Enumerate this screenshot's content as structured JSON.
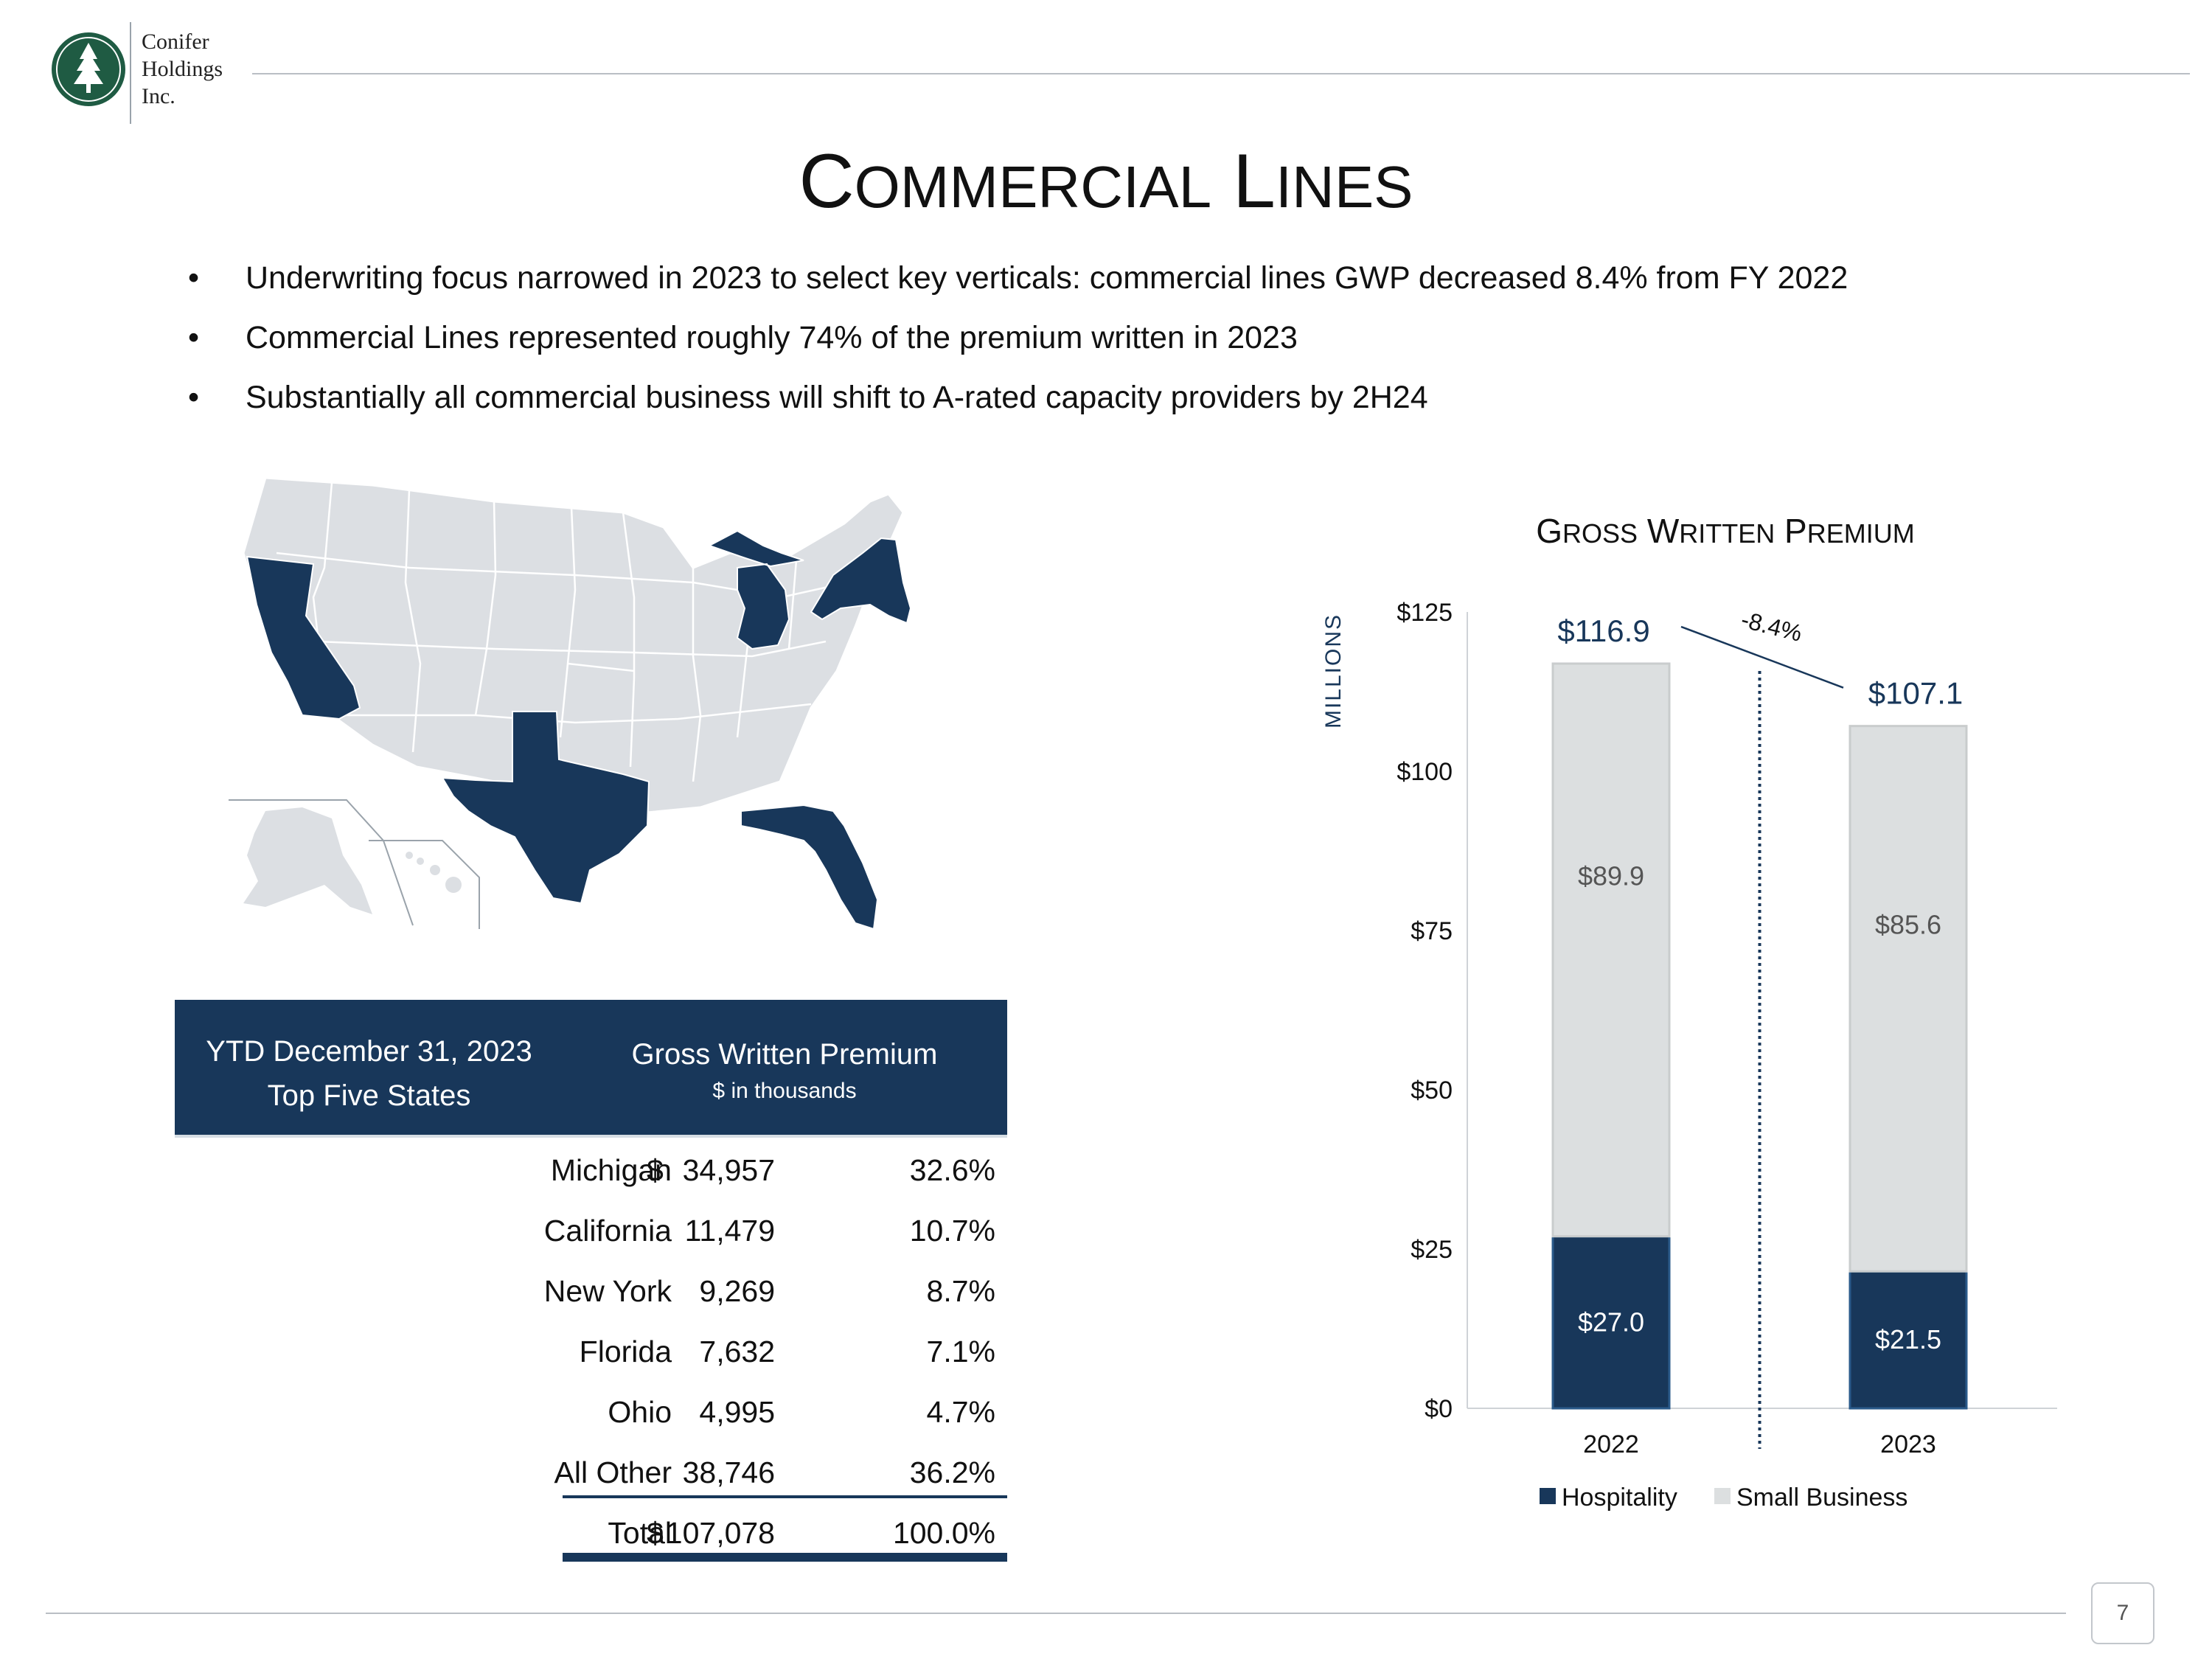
{
  "logo": {
    "line1": "Conifer",
    "line2": "Holdings",
    "line3": "Inc.",
    "seal_color": "#1f5b43"
  },
  "title": {
    "first1": "C",
    "rest1": "ommercial",
    "first2": "L",
    "rest2": "ines"
  },
  "bullets": [
    "Underwriting focus narrowed in 2023 to select key verticals: commercial lines GWP decreased 8.4% from FY 2022",
    "Commercial Lines represented roughly 74% of the premium written in 2023",
    "Substantially all commercial business will shift to A-rated capacity providers by 2H24"
  ],
  "bullet_glyph": "•",
  "map": {
    "highlighted_states": [
      "California",
      "Texas",
      "Michigan",
      "New York",
      "Florida"
    ],
    "highlight_color": "#18375a",
    "base_color": "#dcdfe3"
  },
  "table": {
    "header_left_line1": "YTD December 31, 2023",
    "header_left_line2": "Top Five States",
    "header_right_main": "Gross Written Premium",
    "header_right_sub": "$ in thousands",
    "currency_symbol": "$",
    "rows": [
      {
        "state": "Michigan",
        "gwp": "34,957",
        "pct": "32.6%"
      },
      {
        "state": "California",
        "gwp": "11,479",
        "pct": "10.7%"
      },
      {
        "state": "New York",
        "gwp": "9,269",
        "pct": "8.7%"
      },
      {
        "state": "Florida",
        "gwp": "7,632",
        "pct": "7.1%"
      },
      {
        "state": "Ohio",
        "gwp": "4,995",
        "pct": "4.7%"
      },
      {
        "state": "All Other",
        "gwp": "38,746",
        "pct": "36.2%"
      }
    ],
    "total": {
      "state": "Total",
      "gwp": "107,078",
      "pct": "100.0%"
    },
    "header_color": "#18375a"
  },
  "chart_data": {
    "type": "bar",
    "stacked": true,
    "title_first1": "G",
    "title_rest1": "ross",
    "title_first2": "W",
    "title_rest2": "ritten",
    "title_first3": "P",
    "title_rest3": "remium",
    "ylabel": "MILLIONS",
    "categories": [
      "2022",
      "2023"
    ],
    "series": [
      {
        "name": "Hospitality",
        "values": [
          27.0,
          21.5
        ],
        "labels": [
          "$27.0",
          "$21.5"
        ],
        "color": "#18375a"
      },
      {
        "name": "Small Business",
        "values": [
          89.9,
          85.6
        ],
        "labels": [
          "$89.9",
          "$85.6"
        ],
        "color": "#dcdfe0"
      }
    ],
    "totals": [
      116.9,
      107.1
    ],
    "total_labels": [
      "$116.9",
      "$107.1"
    ],
    "change_label": "-8.4%",
    "ylim": [
      0,
      125
    ],
    "yticks": [
      0,
      25,
      50,
      75,
      100,
      125
    ],
    "ytick_labels": [
      "$0",
      "$25",
      "$50",
      "$75",
      "$100",
      "$125"
    ],
    "legend_position": "bottom",
    "grid": false
  },
  "footer": {
    "page_number": "7"
  }
}
